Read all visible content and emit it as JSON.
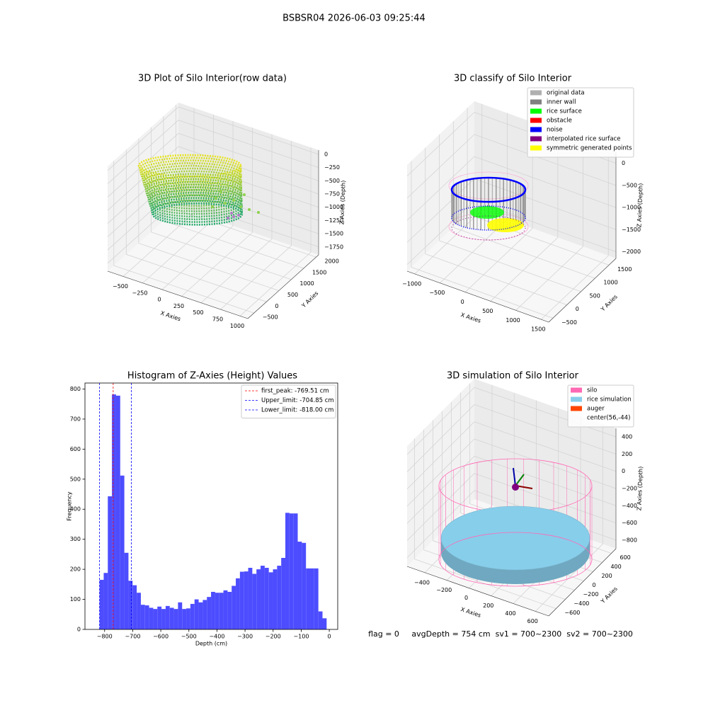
{
  "header": {
    "title": "BSBSR04 2026-06-03 09:25:44"
  },
  "footer": {
    "text": "flag = 0     avgDepth = 754 cm  sv1 = 700~2300  sv2 = 700~2300"
  },
  "chart_data": [
    {
      "type": "scatter3d",
      "title": "3D Plot of Silo Interior(row data)",
      "xlabel": "X Axies",
      "ylabel": "Y Axies",
      "zlabel": "Z Axies (Depth)",
      "xlim": [
        -700,
        1100
      ],
      "ylim": [
        -750,
        2100
      ],
      "zlim": [
        -1900,
        80
      ],
      "xticks": [
        {
          "value": -500,
          "label": "−500"
        },
        {
          "value": -250,
          "label": "−250"
        },
        0,
        250,
        500,
        750,
        1000
      ],
      "yticks": [
        {
          "value": -500,
          "label": "−500"
        },
        0,
        500,
        1000,
        1500,
        2000
      ],
      "zticks": [
        0,
        {
          "value": -250,
          "label": "−250"
        },
        {
          "value": -500,
          "label": "−500"
        },
        {
          "value": -750,
          "label": "−750"
        },
        {
          "value": -1000,
          "label": "−1000"
        },
        {
          "value": -1250,
          "label": "−1250"
        },
        {
          "value": -1500,
          "label": "−1500"
        },
        {
          "value": -1750,
          "label": "−1750"
        }
      ]
    },
    {
      "type": "scatter3d",
      "title": "3D classify of Silo Interior",
      "xlabel": "X Axies",
      "ylabel": "Y Axies",
      "zlabel": "Z Axies (Depth)",
      "xlim": [
        -1150,
        1650
      ],
      "ylim": [
        -650,
        1750
      ],
      "zlim": [
        -2150,
        250
      ],
      "xticks": [
        {
          "value": -1000,
          "label": "−1000"
        },
        {
          "value": -500,
          "label": "−500"
        },
        0,
        500,
        1000,
        1500
      ],
      "yticks": [
        {
          "value": -500,
          "label": "−500"
        },
        0,
        500,
        1000,
        1500
      ],
      "zticks": [
        0,
        {
          "value": -500,
          "label": "−500"
        },
        {
          "value": -1000,
          "label": "−1000"
        },
        {
          "value": -1500,
          "label": "−1500"
        },
        {
          "value": -2000,
          "label": "−2000"
        }
      ],
      "legend": [
        {
          "name": "original data",
          "color": "#b0b0b0"
        },
        {
          "name": "inner wall",
          "color": "#808080"
        },
        {
          "name": "rice surface",
          "color": "#00ff00"
        },
        {
          "name": "obstacle",
          "color": "#ff0000"
        },
        {
          "name": "noise",
          "color": "#0000ff"
        },
        {
          "name": "interpolated rice surface",
          "color": "#800080"
        },
        {
          "name": "symmetric generated points",
          "color": "#ffff00"
        }
      ]
    },
    {
      "type": "histogram",
      "title": "Histogram of Z-Axies (Height) Values",
      "xlabel": "Depth (cm)",
      "ylabel": "Frequency",
      "color": "#4d4dff",
      "bins": [
        -818,
        -803.3,
        -788.6,
        -773.9,
        -759.2,
        -744.5,
        -729.8,
        -715.1,
        -700.4,
        -685.7,
        -671,
        -656.3,
        -641.6,
        -626.9,
        -612.2,
        -597.5,
        -582.8,
        -568.1,
        -553.4,
        -538.7,
        -524,
        -509.3,
        -494.6,
        -479.9,
        -465.2,
        -450.5,
        -435.8,
        -421.1,
        -406.4,
        -391.7,
        -377,
        -362.3,
        -347.6,
        -332.9,
        -318.2,
        -303.5,
        -288.8,
        -274.1,
        -259.4,
        -244.7,
        -230,
        -215.3,
        -200.6,
        -185.9,
        -171.2,
        -156.5,
        -141.8,
        -127.1,
        -112.4,
        -97.7,
        -83,
        -68.3,
        -53.6,
        -38.9,
        -24.2,
        -9.5
      ],
      "counts": [
        165,
        188,
        443,
        782,
        778,
        512,
        255,
        162,
        147,
        122,
        82,
        80,
        72,
        68,
        76,
        68,
        78,
        72,
        68,
        90,
        68,
        70,
        85,
        100,
        90,
        98,
        108,
        125,
        122,
        122,
        130,
        125,
        145,
        170,
        192,
        193,
        205,
        185,
        200,
        212,
        205,
        190,
        200,
        212,
        238,
        388,
        386,
        386,
        292,
        288,
        203,
        203,
        203,
        60,
        37
      ],
      "xlim": [
        -870,
        30
      ],
      "ylim": [
        0,
        820
      ],
      "xticks": [
        {
          "value": -800,
          "label": "−800"
        },
        {
          "value": -700,
          "label": "−700"
        },
        {
          "value": -600,
          "label": "−600"
        },
        {
          "value": -500,
          "label": "−500"
        },
        {
          "value": -400,
          "label": "−400"
        },
        {
          "value": -300,
          "label": "−300"
        },
        {
          "value": -200,
          "label": "−200"
        },
        {
          "value": -100,
          "label": "−100"
        },
        0
      ],
      "yticks": [
        0,
        100,
        200,
        300,
        400,
        500,
        600,
        700,
        800
      ],
      "vlines": [
        {
          "name": "first_peak: -769.51 cm",
          "value": -769.51,
          "color": "#ff0000"
        },
        {
          "name": "Upper_limit: -704.85 cm",
          "value": -704.85,
          "color": "#0000ff"
        },
        {
          "name": "Lower_limit: -818.00 cm",
          "value": -818.0,
          "color": "#0000ff"
        }
      ],
      "legend_position": "upper right"
    },
    {
      "type": "scatter3d",
      "title": "3D simulation of Silo Interior",
      "xlabel": "X Axies",
      "ylabel": "Y Axies",
      "zlabel": "Z Axies (Depth)",
      "xlim": [
        -560,
        720
      ],
      "ylim": [
        -760,
        700
      ],
      "zlim": [
        -900,
        500
      ],
      "xticks": [
        {
          "value": -400,
          "label": "−400"
        },
        {
          "value": -200,
          "label": "−200"
        },
        0,
        200,
        400,
        600
      ],
      "yticks": [
        {
          "value": -600,
          "label": "−600"
        },
        {
          "value": -400,
          "label": "−400"
        },
        {
          "value": -200,
          "label": "−200"
        },
        0,
        200,
        400,
        600
      ],
      "zticks": [
        400,
        200,
        0,
        {
          "value": -200,
          "label": "−200"
        },
        {
          "value": -400,
          "label": "−400"
        },
        {
          "value": -600,
          "label": "−600"
        },
        {
          "value": -800,
          "label": "−800"
        }
      ],
      "legend": [
        {
          "name": "silo",
          "color": "#ff69b4"
        },
        {
          "name": "rice simulation",
          "color": "#87ceeb"
        },
        {
          "name": "auger",
          "color": "#ff4500"
        },
        {
          "name": "center(56,-44)"
        }
      ]
    }
  ]
}
